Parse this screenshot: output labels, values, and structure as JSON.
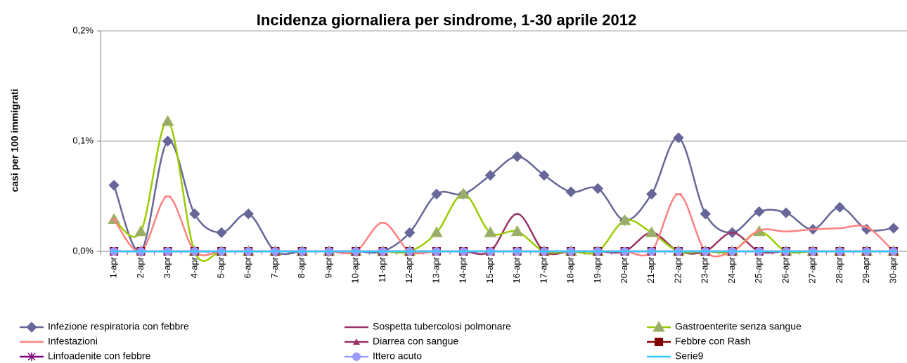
{
  "chart_data": {
    "type": "line",
    "title": "Incidenza giornaliera per sindrome, 1-30 aprile 2012",
    "y_label": "casi per 100 immigrati",
    "categories": [
      "1-apr",
      "2-apr",
      "3-apr",
      "4-apr",
      "5-apr",
      "6-apr",
      "7-apr",
      "8-apr",
      "9-apr",
      "10-apr",
      "11-apr",
      "12-apr",
      "13-apr",
      "14-apr",
      "15-apr",
      "16-apr",
      "17-apr",
      "18-apr",
      "19-apr",
      "20-apr",
      "21-apr",
      "22-apr",
      "23-apr",
      "24-apr",
      "25-apr",
      "26-apr",
      "27-apr",
      "28-apr",
      "29-apr",
      "30-apr"
    ],
    "ylim": [
      0,
      0.2
    ],
    "yticks": [
      {
        "value": 0,
        "label": "0,0%"
      },
      {
        "value": 0.1,
        "label": "0,1%"
      },
      {
        "value": 0.2,
        "label": "0,2%"
      }
    ],
    "grid": true,
    "series": [
      {
        "name": "Infezione respiratoria con febbre",
        "color": "#666699",
        "marker": "diamond",
        "values": [
          0.06,
          0,
          0.1,
          0.034,
          0.017,
          0.034,
          0,
          0,
          0,
          0,
          0,
          0.017,
          0.052,
          0.052,
          0.069,
          0.086,
          0.069,
          0.054,
          0.057,
          0.028,
          0.052,
          0.103,
          0.034,
          0.017,
          0.036,
          0.035,
          0.02,
          0.04,
          0.02,
          0.021
        ]
      },
      {
        "name": "Sospetta tubercolosi polmonare",
        "color": "#993366",
        "marker": "none",
        "values": [
          0,
          0,
          0,
          0,
          0,
          0,
          0,
          0,
          0,
          0,
          0,
          0,
          0,
          0,
          0,
          0.034,
          0,
          0,
          0,
          0,
          0.017,
          0,
          0,
          0.017,
          0,
          0,
          0,
          0,
          0,
          0
        ]
      },
      {
        "name": "Gastroenterite senza sangue",
        "color": "#99cc00",
        "marker": "triangle",
        "values": [
          0.029,
          0.018,
          0.118,
          0,
          0,
          0,
          0,
          0,
          0,
          0,
          0,
          0,
          0.017,
          0.052,
          0.017,
          0.018,
          0,
          0,
          0,
          0.028,
          0.017,
          0,
          0,
          0,
          0.018,
          0,
          0,
          0,
          0,
          0
        ]
      },
      {
        "name": "Infestazioni",
        "color": "#ff8080",
        "marker": "dash",
        "values": [
          0.029,
          0,
          0.05,
          0,
          0,
          0,
          0,
          0,
          0,
          0,
          0.026,
          0,
          0,
          0,
          0,
          0,
          0,
          0,
          0,
          0,
          0,
          0.052,
          0,
          0,
          0.019,
          0.018,
          0.02,
          0.021,
          0.022,
          0
        ]
      },
      {
        "name": "Diarrea con sangue",
        "color": "#993366",
        "marker": "small-triangle",
        "values": [
          0,
          0,
          0,
          0,
          0,
          0,
          0,
          0,
          0,
          0,
          0,
          0,
          0,
          0,
          0,
          0,
          0,
          0,
          0,
          0,
          0,
          0,
          0,
          0,
          0,
          0,
          0,
          0,
          0,
          0
        ]
      },
      {
        "name": "Febbre con Rash",
        "color": "#800000",
        "marker": "square",
        "values": [
          0,
          0,
          0,
          0,
          0,
          0,
          0,
          0,
          0,
          0,
          0,
          0,
          0,
          0,
          0,
          0,
          0,
          0,
          0,
          0,
          0,
          0,
          0,
          0,
          0,
          0,
          0,
          0,
          0,
          0
        ]
      },
      {
        "name": "Linfoadenite con febbre",
        "color": "#800080",
        "marker": "star",
        "values": [
          0,
          0,
          0,
          0,
          0,
          0,
          0,
          0,
          0,
          0,
          0,
          0,
          0,
          0,
          0,
          0,
          0,
          0,
          0,
          0,
          0,
          0,
          0,
          0,
          0,
          0,
          0,
          0,
          0,
          0
        ]
      },
      {
        "name": "Ittero acuto",
        "color": "#9999ff",
        "marker": "circle",
        "values": [
          0,
          0,
          0,
          0,
          0,
          0,
          0,
          0,
          0,
          0,
          0,
          0,
          0,
          0,
          0,
          0,
          0,
          0,
          0,
          0,
          0,
          0,
          0,
          0,
          0,
          0,
          0,
          0,
          0,
          0
        ]
      },
      {
        "name": "Serie9",
        "color": "#33ccff",
        "marker": "dash",
        "values": [
          0,
          0,
          0,
          0,
          0,
          0,
          0,
          0,
          0,
          0,
          0,
          0,
          0,
          0,
          0,
          0,
          0,
          0,
          0,
          0,
          0,
          0,
          0,
          0,
          0,
          0,
          0,
          0,
          0,
          0
        ]
      }
    ]
  }
}
